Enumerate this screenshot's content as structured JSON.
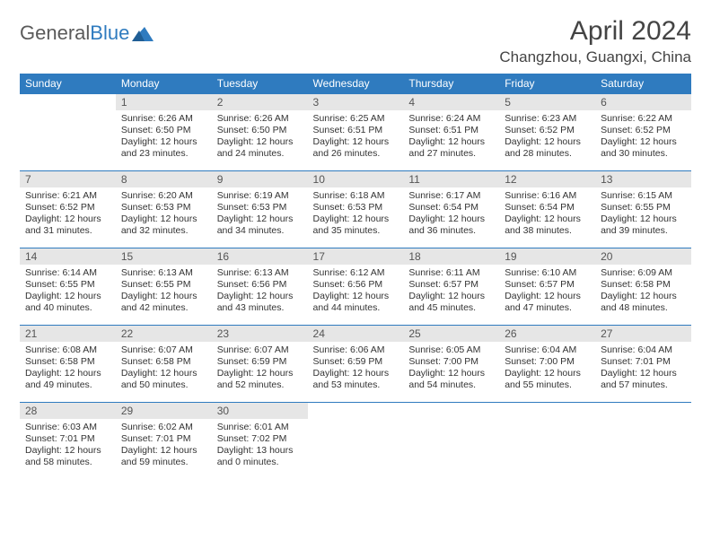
{
  "brand": {
    "part1": "General",
    "part2": "Blue"
  },
  "title": "April 2024",
  "location": "Changzhou, Guangxi, China",
  "header_bg": "#2f7bbf",
  "day_header_bg": "#e6e6e6",
  "rule_color": "#2f7bbf",
  "weekdays": [
    "Sunday",
    "Monday",
    "Tuesday",
    "Wednesday",
    "Thursday",
    "Friday",
    "Saturday"
  ],
  "start_offset": 1,
  "days": [
    {
      "n": "1",
      "sr": "6:26 AM",
      "ss": "6:50 PM",
      "dl": "12 hours and 23 minutes."
    },
    {
      "n": "2",
      "sr": "6:26 AM",
      "ss": "6:50 PM",
      "dl": "12 hours and 24 minutes."
    },
    {
      "n": "3",
      "sr": "6:25 AM",
      "ss": "6:51 PM",
      "dl": "12 hours and 26 minutes."
    },
    {
      "n": "4",
      "sr": "6:24 AM",
      "ss": "6:51 PM",
      "dl": "12 hours and 27 minutes."
    },
    {
      "n": "5",
      "sr": "6:23 AM",
      "ss": "6:52 PM",
      "dl": "12 hours and 28 minutes."
    },
    {
      "n": "6",
      "sr": "6:22 AM",
      "ss": "6:52 PM",
      "dl": "12 hours and 30 minutes."
    },
    {
      "n": "7",
      "sr": "6:21 AM",
      "ss": "6:52 PM",
      "dl": "12 hours and 31 minutes."
    },
    {
      "n": "8",
      "sr": "6:20 AM",
      "ss": "6:53 PM",
      "dl": "12 hours and 32 minutes."
    },
    {
      "n": "9",
      "sr": "6:19 AM",
      "ss": "6:53 PM",
      "dl": "12 hours and 34 minutes."
    },
    {
      "n": "10",
      "sr": "6:18 AM",
      "ss": "6:53 PM",
      "dl": "12 hours and 35 minutes."
    },
    {
      "n": "11",
      "sr": "6:17 AM",
      "ss": "6:54 PM",
      "dl": "12 hours and 36 minutes."
    },
    {
      "n": "12",
      "sr": "6:16 AM",
      "ss": "6:54 PM",
      "dl": "12 hours and 38 minutes."
    },
    {
      "n": "13",
      "sr": "6:15 AM",
      "ss": "6:55 PM",
      "dl": "12 hours and 39 minutes."
    },
    {
      "n": "14",
      "sr": "6:14 AM",
      "ss": "6:55 PM",
      "dl": "12 hours and 40 minutes."
    },
    {
      "n": "15",
      "sr": "6:13 AM",
      "ss": "6:55 PM",
      "dl": "12 hours and 42 minutes."
    },
    {
      "n": "16",
      "sr": "6:13 AM",
      "ss": "6:56 PM",
      "dl": "12 hours and 43 minutes."
    },
    {
      "n": "17",
      "sr": "6:12 AM",
      "ss": "6:56 PM",
      "dl": "12 hours and 44 minutes."
    },
    {
      "n": "18",
      "sr": "6:11 AM",
      "ss": "6:57 PM",
      "dl": "12 hours and 45 minutes."
    },
    {
      "n": "19",
      "sr": "6:10 AM",
      "ss": "6:57 PM",
      "dl": "12 hours and 47 minutes."
    },
    {
      "n": "20",
      "sr": "6:09 AM",
      "ss": "6:58 PM",
      "dl": "12 hours and 48 minutes."
    },
    {
      "n": "21",
      "sr": "6:08 AM",
      "ss": "6:58 PM",
      "dl": "12 hours and 49 minutes."
    },
    {
      "n": "22",
      "sr": "6:07 AM",
      "ss": "6:58 PM",
      "dl": "12 hours and 50 minutes."
    },
    {
      "n": "23",
      "sr": "6:07 AM",
      "ss": "6:59 PM",
      "dl": "12 hours and 52 minutes."
    },
    {
      "n": "24",
      "sr": "6:06 AM",
      "ss": "6:59 PM",
      "dl": "12 hours and 53 minutes."
    },
    {
      "n": "25",
      "sr": "6:05 AM",
      "ss": "7:00 PM",
      "dl": "12 hours and 54 minutes."
    },
    {
      "n": "26",
      "sr": "6:04 AM",
      "ss": "7:00 PM",
      "dl": "12 hours and 55 minutes."
    },
    {
      "n": "27",
      "sr": "6:04 AM",
      "ss": "7:01 PM",
      "dl": "12 hours and 57 minutes."
    },
    {
      "n": "28",
      "sr": "6:03 AM",
      "ss": "7:01 PM",
      "dl": "12 hours and 58 minutes."
    },
    {
      "n": "29",
      "sr": "6:02 AM",
      "ss": "7:01 PM",
      "dl": "12 hours and 59 minutes."
    },
    {
      "n": "30",
      "sr": "6:01 AM",
      "ss": "7:02 PM",
      "dl": "13 hours and 0 minutes."
    }
  ],
  "labels": {
    "sunrise": "Sunrise:",
    "sunset": "Sunset:",
    "daylight": "Daylight:"
  }
}
